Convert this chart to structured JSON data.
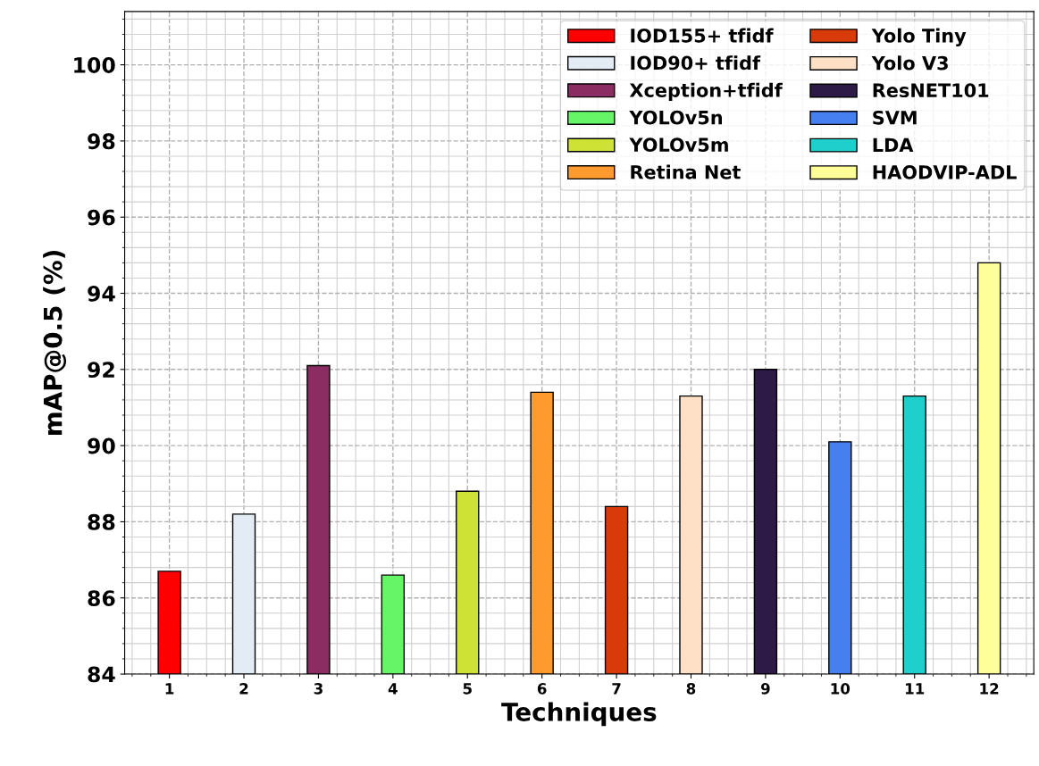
{
  "chart_data": {
    "type": "bar",
    "xlabel": "Techniques",
    "ylabel": "mAP@0.5 (%)",
    "categories": [
      "1",
      "2",
      "3",
      "4",
      "5",
      "6",
      "7",
      "8",
      "9",
      "10",
      "11",
      "12"
    ],
    "series": [
      {
        "name": "IOD155+ tfidf",
        "color": "#ff0000",
        "values": [
          86.7,
          null,
          null,
          null,
          null,
          null,
          null,
          null,
          null,
          null,
          null,
          null
        ]
      },
      {
        "name": "IOD90+ tfidf",
        "color": "#e3ecf5",
        "values": [
          null,
          88.2,
          null,
          null,
          null,
          null,
          null,
          null,
          null,
          null,
          null,
          null
        ]
      },
      {
        "name": "Xception+tfidf",
        "color": "#8b2d62",
        "values": [
          null,
          null,
          92.1,
          null,
          null,
          null,
          null,
          null,
          null,
          null,
          null,
          null
        ]
      },
      {
        "name": "YOLOv5n",
        "color": "#66f566",
        "values": [
          null,
          null,
          null,
          86.6,
          null,
          null,
          null,
          null,
          null,
          null,
          null,
          null
        ]
      },
      {
        "name": "YOLOv5m",
        "color": "#cde235",
        "values": [
          null,
          null,
          null,
          null,
          88.8,
          null,
          null,
          null,
          null,
          null,
          null,
          null
        ]
      },
      {
        "name": "Retina Net",
        "color": "#ff9a2e",
        "values": [
          null,
          null,
          null,
          null,
          null,
          91.4,
          null,
          null,
          null,
          null,
          null,
          null
        ]
      },
      {
        "name": "Yolo Tiny",
        "color": "#d83a0a",
        "values": [
          null,
          null,
          null,
          null,
          null,
          null,
          88.4,
          null,
          null,
          null,
          null,
          null
        ]
      },
      {
        "name": "Yolo V3",
        "color": "#fde0c5",
        "values": [
          null,
          null,
          null,
          null,
          null,
          null,
          null,
          91.3,
          null,
          null,
          null,
          null
        ]
      },
      {
        "name": "ResNET101",
        "color": "#2e1a47",
        "values": [
          null,
          null,
          null,
          null,
          null,
          null,
          null,
          null,
          92.0,
          null,
          null,
          null
        ]
      },
      {
        "name": "SVM",
        "color": "#4680f0",
        "values": [
          null,
          null,
          null,
          null,
          null,
          null,
          null,
          null,
          null,
          90.1,
          null,
          null
        ]
      },
      {
        "name": "LDA",
        "color": "#1fcfcb",
        "values": [
          null,
          null,
          null,
          null,
          null,
          null,
          null,
          null,
          null,
          null,
          91.3,
          null
        ]
      },
      {
        "name": "HAODVIP-ADL",
        "color": "#ffff99",
        "values": [
          null,
          null,
          null,
          null,
          null,
          null,
          null,
          null,
          null,
          null,
          null,
          94.8
        ]
      }
    ],
    "ylim": [
      84,
      101.4
    ],
    "yticks": [
      84,
      86,
      88,
      90,
      92,
      94,
      96,
      98,
      100
    ],
    "grid": true,
    "legend": "top right"
  }
}
